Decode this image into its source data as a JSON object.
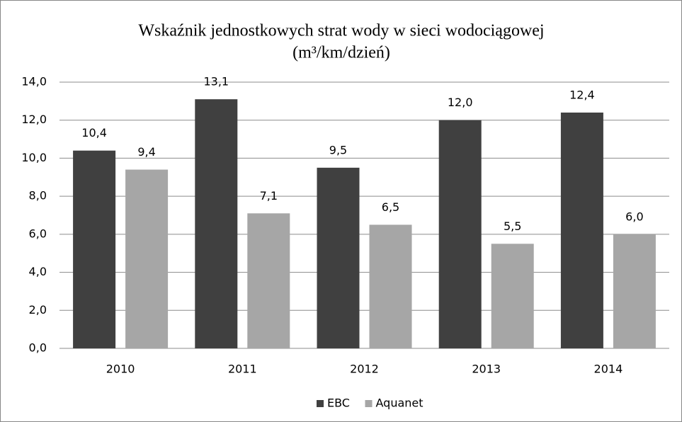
{
  "chart_data": {
    "type": "bar",
    "title": [
      "Wskaźnik jednostkowych strat wody w sieci wodociągowej",
      "(m³/km/dzień)"
    ],
    "categories": [
      "2010",
      "2011",
      "2012",
      "2013",
      "2014"
    ],
    "series": [
      {
        "name": "EBC",
        "color": "#404040",
        "values": [
          10.4,
          13.1,
          9.5,
          12.0,
          12.4
        ],
        "value_labels": [
          "10,4",
          "13,1",
          "9,5",
          "12,0",
          "12,4"
        ]
      },
      {
        "name": "Aquanet",
        "color": "#a6a6a6",
        "values": [
          9.4,
          7.1,
          6.5,
          5.5,
          6.0
        ],
        "value_labels": [
          "9,4",
          "7,1",
          "6,5",
          "5,5",
          "6,0"
        ]
      }
    ],
    "ylim": [
      0,
      14
    ],
    "yticks": [
      {
        "value": 0,
        "label": "0,0"
      },
      {
        "value": 2,
        "label": "2,0"
      },
      {
        "value": 4,
        "label": "4,0"
      },
      {
        "value": 6,
        "label": "6,0"
      },
      {
        "value": 8,
        "label": "8,0"
      },
      {
        "value": 10,
        "label": "10,0"
      },
      {
        "value": 12,
        "label": "12,0"
      },
      {
        "value": 14,
        "label": "14,0"
      }
    ],
    "grid": true,
    "legend": "bottom"
  }
}
